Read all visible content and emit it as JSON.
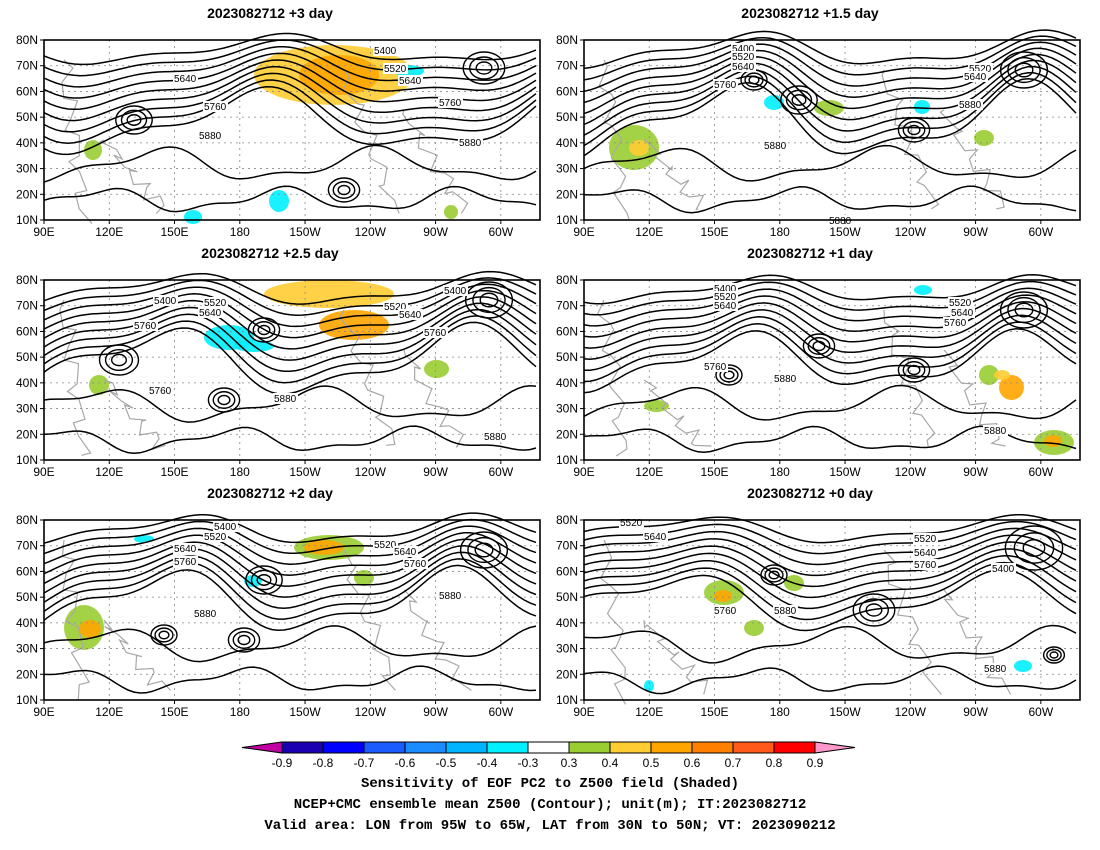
{
  "panels": [
    {
      "title": "2023082712 +3 day",
      "contour_labels": [
        "5400",
        "5520",
        "5640",
        "5640",
        "5760",
        "5760",
        "5880",
        "5880"
      ]
    },
    {
      "title": "2023082712 +1.5 day",
      "contour_labels": [
        "5400",
        "5520",
        "5640",
        "5760",
        "5520",
        "5640",
        "5880",
        "5880",
        "5880"
      ]
    },
    {
      "title": "2023082712 +2.5 day",
      "contour_labels": [
        "5400",
        "5520",
        "5640",
        "5760",
        "5400",
        "5520",
        "5640",
        "5760",
        "5760",
        "5880",
        "5880"
      ]
    },
    {
      "title": "2023082712 +1 day",
      "contour_labels": [
        "5400",
        "5520",
        "5640",
        "5520",
        "5640",
        "5760",
        "5760",
        "5880",
        "5880"
      ]
    },
    {
      "title": "2023082712 +2 day",
      "contour_labels": [
        "5400",
        "5520",
        "5640",
        "5760",
        "5520",
        "5640",
        "5760",
        "5880",
        "5880"
      ]
    },
    {
      "title": "2023082712 +0 day",
      "contour_labels": [
        "5520",
        "5640",
        "5520",
        "5640",
        "5760",
        "5400",
        "5760",
        "5880",
        "5880"
      ]
    }
  ],
  "axes": {
    "lat_ticks": [
      "80N",
      "70N",
      "60N",
      "50N",
      "40N",
      "30N",
      "20N",
      "10N"
    ],
    "lon_ticks": [
      "90E",
      "120E",
      "150E",
      "180",
      "150W",
      "120W",
      "90W",
      "60W"
    ]
  },
  "colorbar": {
    "ticks": [
      "-0.9",
      "-0.8",
      "-0.7",
      "-0.6",
      "-0.5",
      "-0.4",
      "-0.3",
      "0.3",
      "0.4",
      "0.5",
      "0.6",
      "0.7",
      "0.8",
      "0.9"
    ],
    "colors": [
      "#c000a0",
      "#1a00b0",
      "#0000ff",
      "#1a5cff",
      "#1a8cff",
      "#00b4ff",
      "#00f0ff",
      "#ffffff",
      "#9acd32",
      "#ffcc33",
      "#ffa500",
      "#ff7f00",
      "#ff5a1a",
      "#ff0000",
      "#ff99cc"
    ]
  },
  "caption": {
    "line1": "Sensitivity of EOF PC2 to Z500 field (Shaded)",
    "line2": "NCEP+CMC ensemble mean Z500 (Contour); unit(m); IT:2023082712",
    "line3": "Valid area: LON from 95W to 65W, LAT from 30N to 50N; VT: 2023090212"
  }
}
